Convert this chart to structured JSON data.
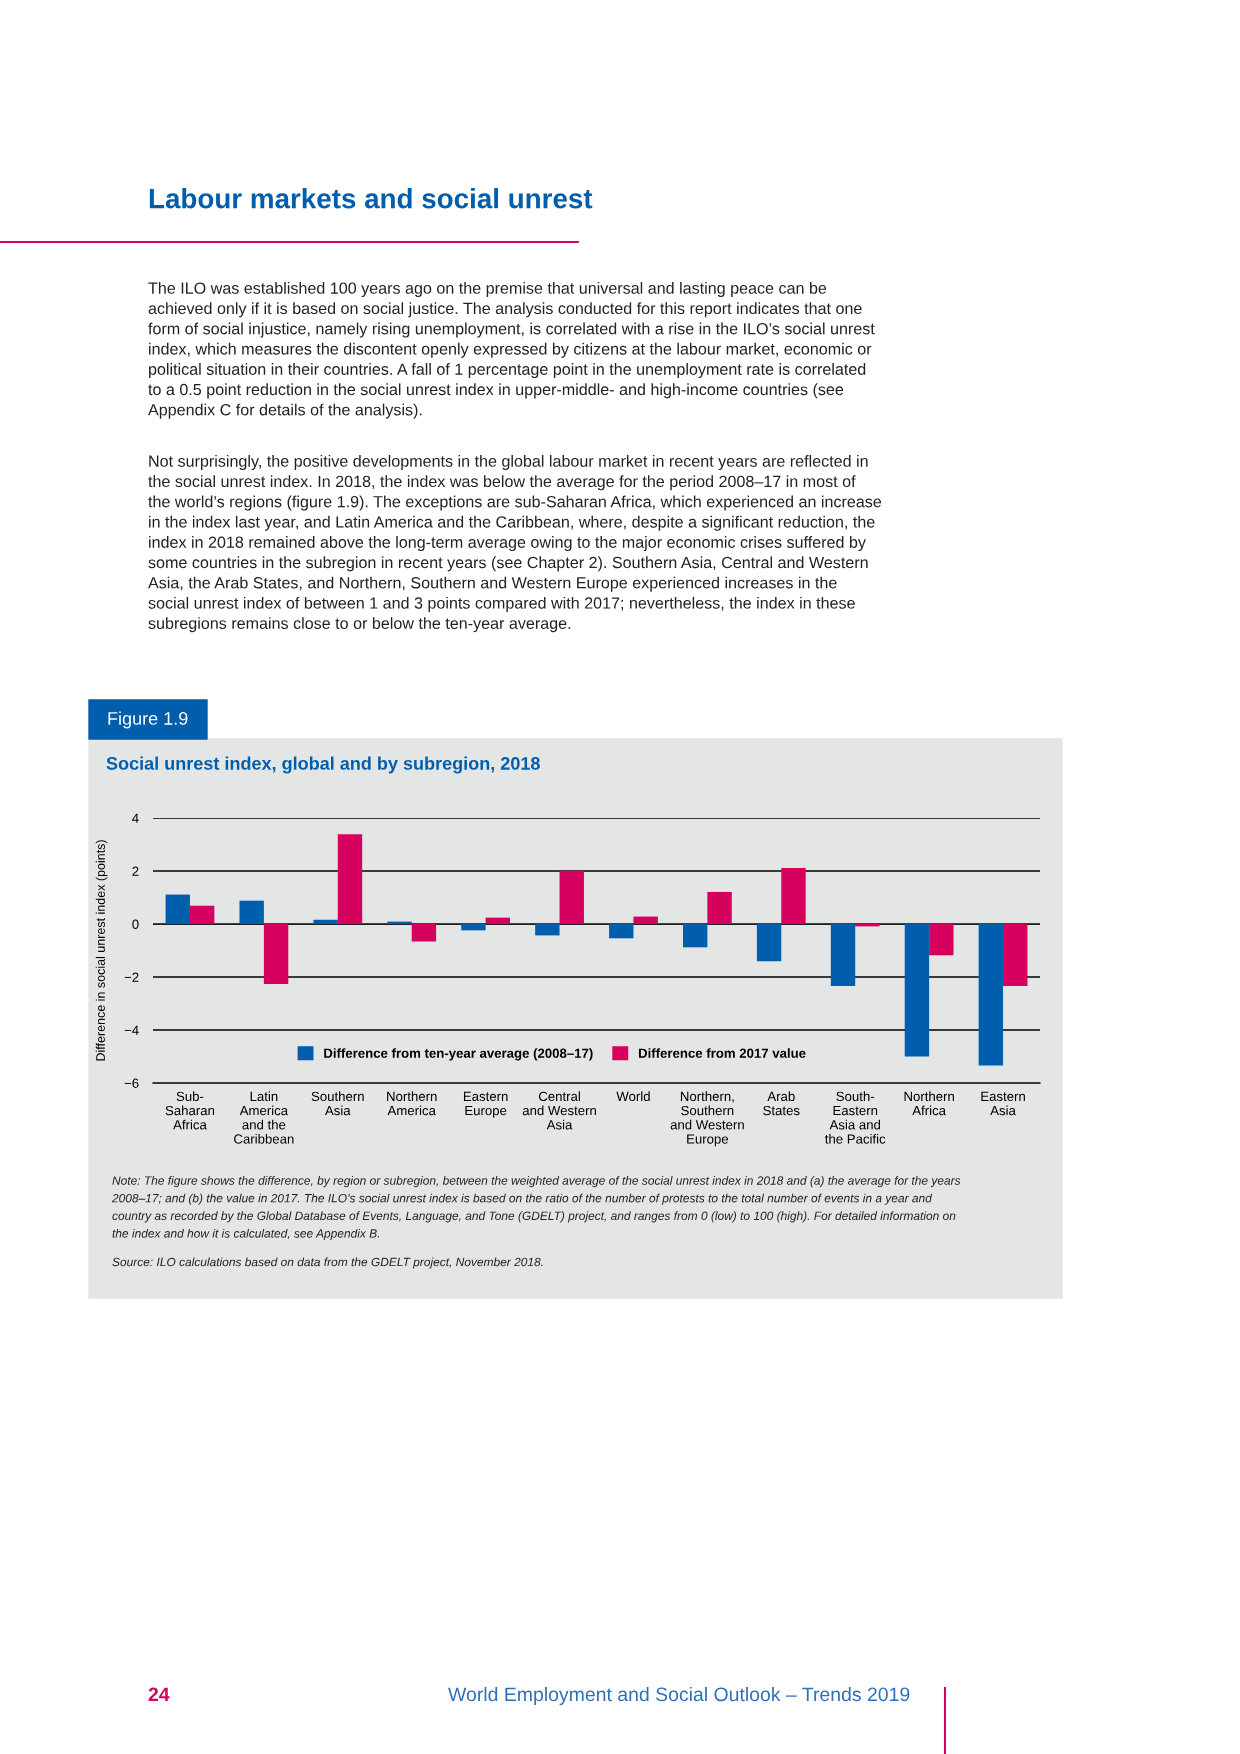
{
  "chart_data": {
    "type": "bar",
    "title": "Social unrest index, global and by subregion, 2018",
    "ylabel": "Difference in social unrest index (points)",
    "categories": [
      "Sub-\nSaharan\nAfrica",
      "Latin\nAmerica\nand the\nCaribbean",
      "Southern\nAsia",
      "Northern\nAmerica",
      "Eastern\nEurope",
      "Central\nand Western\nAsia",
      "World",
      "Northern,\nSouthern\nand Western\nEurope",
      "Arab\nStates",
      "South-\nEastern\nAsia and\nthe Pacific",
      "Northern\nAfrica",
      "Eastern\nAsia"
    ],
    "series": [
      {
        "name": "Difference from ten-year average (2008–17)",
        "color": "#005eac",
        "values": [
          1.11,
          0.88,
          0.16,
          0.09,
          -0.24,
          -0.43,
          -0.54,
          -0.88,
          -1.41,
          -2.34,
          -5.0,
          -5.34
        ]
      },
      {
        "name": "Difference from 2017 value",
        "color": "#d6005f",
        "values": [
          0.69,
          -2.26,
          3.39,
          -0.66,
          0.24,
          2.01,
          0.28,
          1.21,
          2.11,
          -0.09,
          -1.18,
          -2.34
        ]
      }
    ],
    "ylim": [
      -6,
      4
    ],
    "yticks": [
      {
        "value": -6,
        "label": "−6"
      },
      {
        "value": -4,
        "label": "−4"
      },
      {
        "value": -2,
        "label": "−2"
      },
      0,
      2,
      4
    ],
    "grid": "y",
    "legend": "bottom",
    "annotations": [
      "Labour markets and social unrest",
      "The ILO was established 100 years ago on the premise that universal and lasting peace can be\nachieved only if it is based on social justice. The analysis conducted for this report indicates that one\nform of social injustice, namely rising unemployment, is correlated with a rise in the ILO’s social unrest\nindex, which measures the discontent openly expressed by citizens at the labour market, economic or\npolitical situation in their countries. A fall of 1 percentage point in the unemployment rate is correlated\nto a 0.5 point reduction in the social unrest index in upper-middle- and high-income countries (see\nAppendix C for details of the analysis).",
      "Not surprisingly, the positive developments in the global labour market in recent years are reflected in\nthe social unrest index. In 2018, the index was below the average for the period 2008–17 in most of\nthe world’s regions (figure 1.9). The exceptions are sub-Saharan Africa, which experienced an increase\nin the index last year, and Latin America and the Caribbean, where, despite a significant reduction, the\nindex in 2018 remained above the long-term average owing to the major economic crises suffered by\nsome countries in the subregion in recent years (see Chapter 2). Southern Asia, Central and Western\nAsia, the Arab States, and Northern, Southern and Western Europe experienced increases in the\nsocial unrest index of between 1 and 3 points compared with 2017; nevertheless, the index in these\nsubregions remains close to or below the ten-year average.",
      "Figure 1.9",
      "Note: The figure shows the difference, by region or subregion, between the weighted average of the social unrest index in 2018 and (a) the average for the years\n2008–17; and (b) the value in 2017. The ILO’s social unrest index is based on the ratio of the number of protests to the total number of events in a year and\ncountry as recorded by the Global Database of Events, Language, and Tone (GDELT) project, and ranges from 0 (low) to 100 (high). For detailed information on\nthe index and how it is calculated, see Appendix B.",
      "Source: ILO calculations based on data from the GDELT project, November 2018.",
      "24",
      "World Employment and Social Outlook – Trends 2019"
    ]
  }
}
